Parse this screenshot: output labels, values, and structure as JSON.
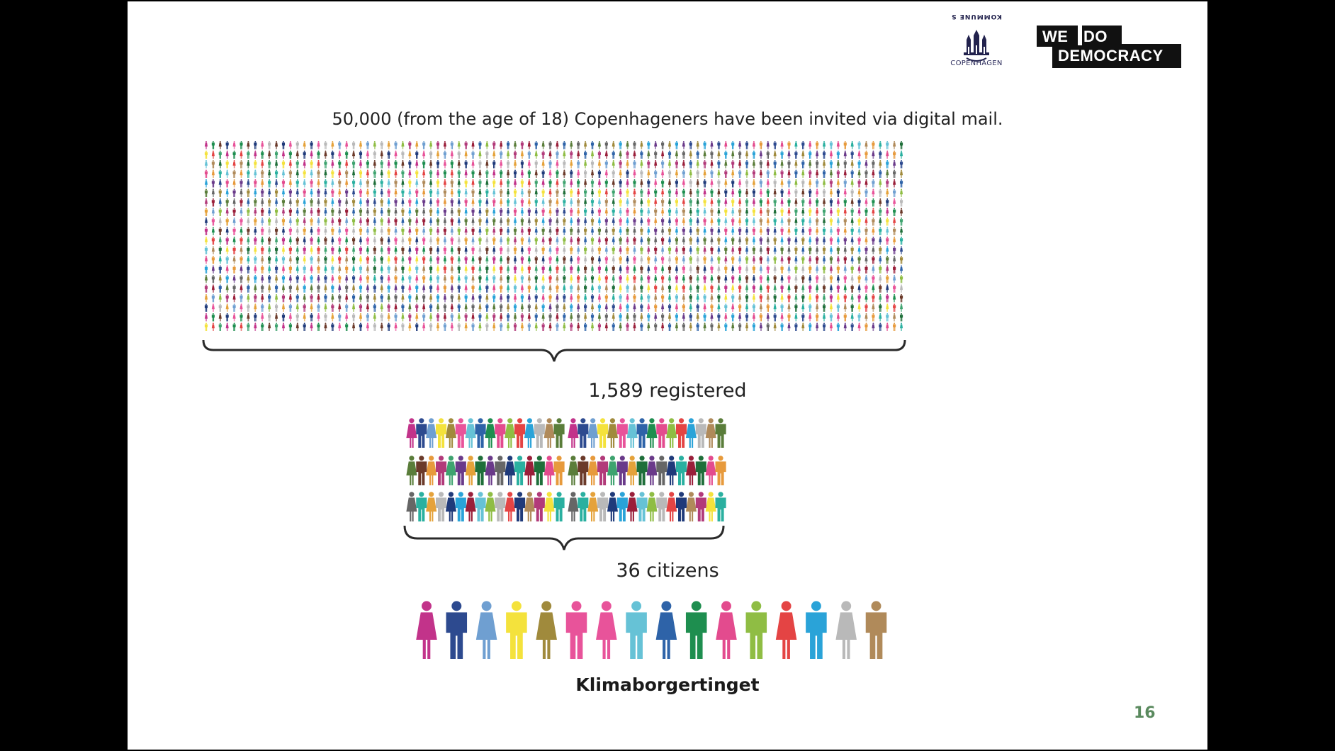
{
  "slide": {
    "invited_text": "50,000 (from the age of 18) Copenhageners have been invited via digital mail.",
    "registered_text": "1,589 registered",
    "citizens_text": "36 citizens",
    "title": "Klimaborgertinget",
    "page_number": "16"
  },
  "logos": {
    "kommune_top": "KOMMUNE S",
    "kommune_city": "COPENHAGEN",
    "wdd_line1a": "WE",
    "wdd_line1b": "DO",
    "wdd_line2": "DEMOCRACY"
  },
  "palette": [
    "#c2338a",
    "#2d4a8f",
    "#6f9fd1",
    "#f4e23c",
    "#a08a3c",
    "#e8539a",
    "#66c2d6",
    "#2e63a8",
    "#1e8e4f",
    "#e34b8e",
    "#8fbd44",
    "#e44444",
    "#2aa3d8",
    "#b9b9b9",
    "#b08a5a",
    "#5a7d3a",
    "#6b3a2a",
    "#e79a3c",
    "#b23a7a",
    "#3ea36f",
    "#6a3a8a",
    "#e5a23a",
    "#1f6f3a",
    "#666666",
    "#1f3a7a",
    "#2ab0a0",
    "#9a1f3a"
  ],
  "figures": {
    "crowd": {
      "rows": 20,
      "cols": 100,
      "represents": 50000
    },
    "registered": {
      "rows": 3,
      "cols": 32,
      "represents": 1589
    },
    "citizens": {
      "count": 16
    }
  }
}
